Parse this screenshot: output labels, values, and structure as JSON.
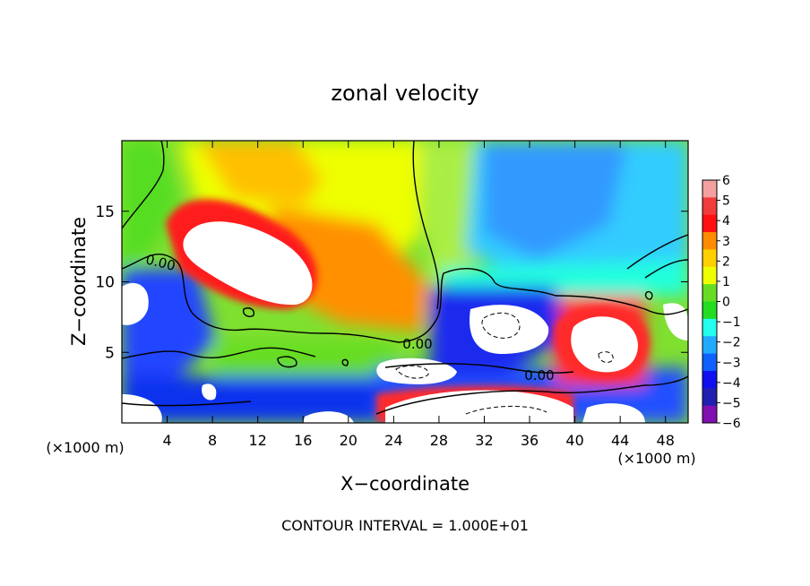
{
  "chart_data": {
    "type": "heatmap",
    "title": "zonal velocity",
    "xlabel": "X−coordinate",
    "ylabel": "Z−coordinate",
    "x_unit_left": "(×1000 m)",
    "x_unit_right": "(×1000 m)",
    "xlim": [
      0,
      50
    ],
    "ylim": [
      0,
      20
    ],
    "x_ticks": [
      4,
      8,
      12,
      16,
      20,
      24,
      28,
      32,
      36,
      40,
      44,
      48
    ],
    "x_tick_labels": [
      "4",
      "8",
      "12",
      "16",
      "20",
      "24",
      "28",
      "32",
      "36",
      "40",
      "44",
      "48"
    ],
    "y_ticks": [
      5,
      10,
      15
    ],
    "y_tick_labels": [
      "5",
      "10",
      "15"
    ],
    "colorbar": {
      "levels": [
        6,
        5,
        4,
        3,
        2,
        1,
        0,
        -1,
        -2,
        -3,
        -4,
        -5,
        -6
      ],
      "labels": [
        "6",
        "5",
        "4",
        "3",
        "2",
        "1",
        "0",
        "−1",
        "−2",
        "−3",
        "−4",
        "−5",
        "−6"
      ],
      "colors": [
        "#f4a0a0",
        "#f03c3c",
        "#ff1010",
        "#ff8c00",
        "#ffd000",
        "#eeff00",
        "#66dd22",
        "#22dd22",
        "#22ffee",
        "#22aaff",
        "#1060ff",
        "#1010ee",
        "#2020b0",
        "#8010b0"
      ]
    },
    "contour_labels": [
      "0.00",
      "0.00",
      "0.00"
    ],
    "footer": "CONTOUR INTERVAL = 1.000E+01"
  }
}
